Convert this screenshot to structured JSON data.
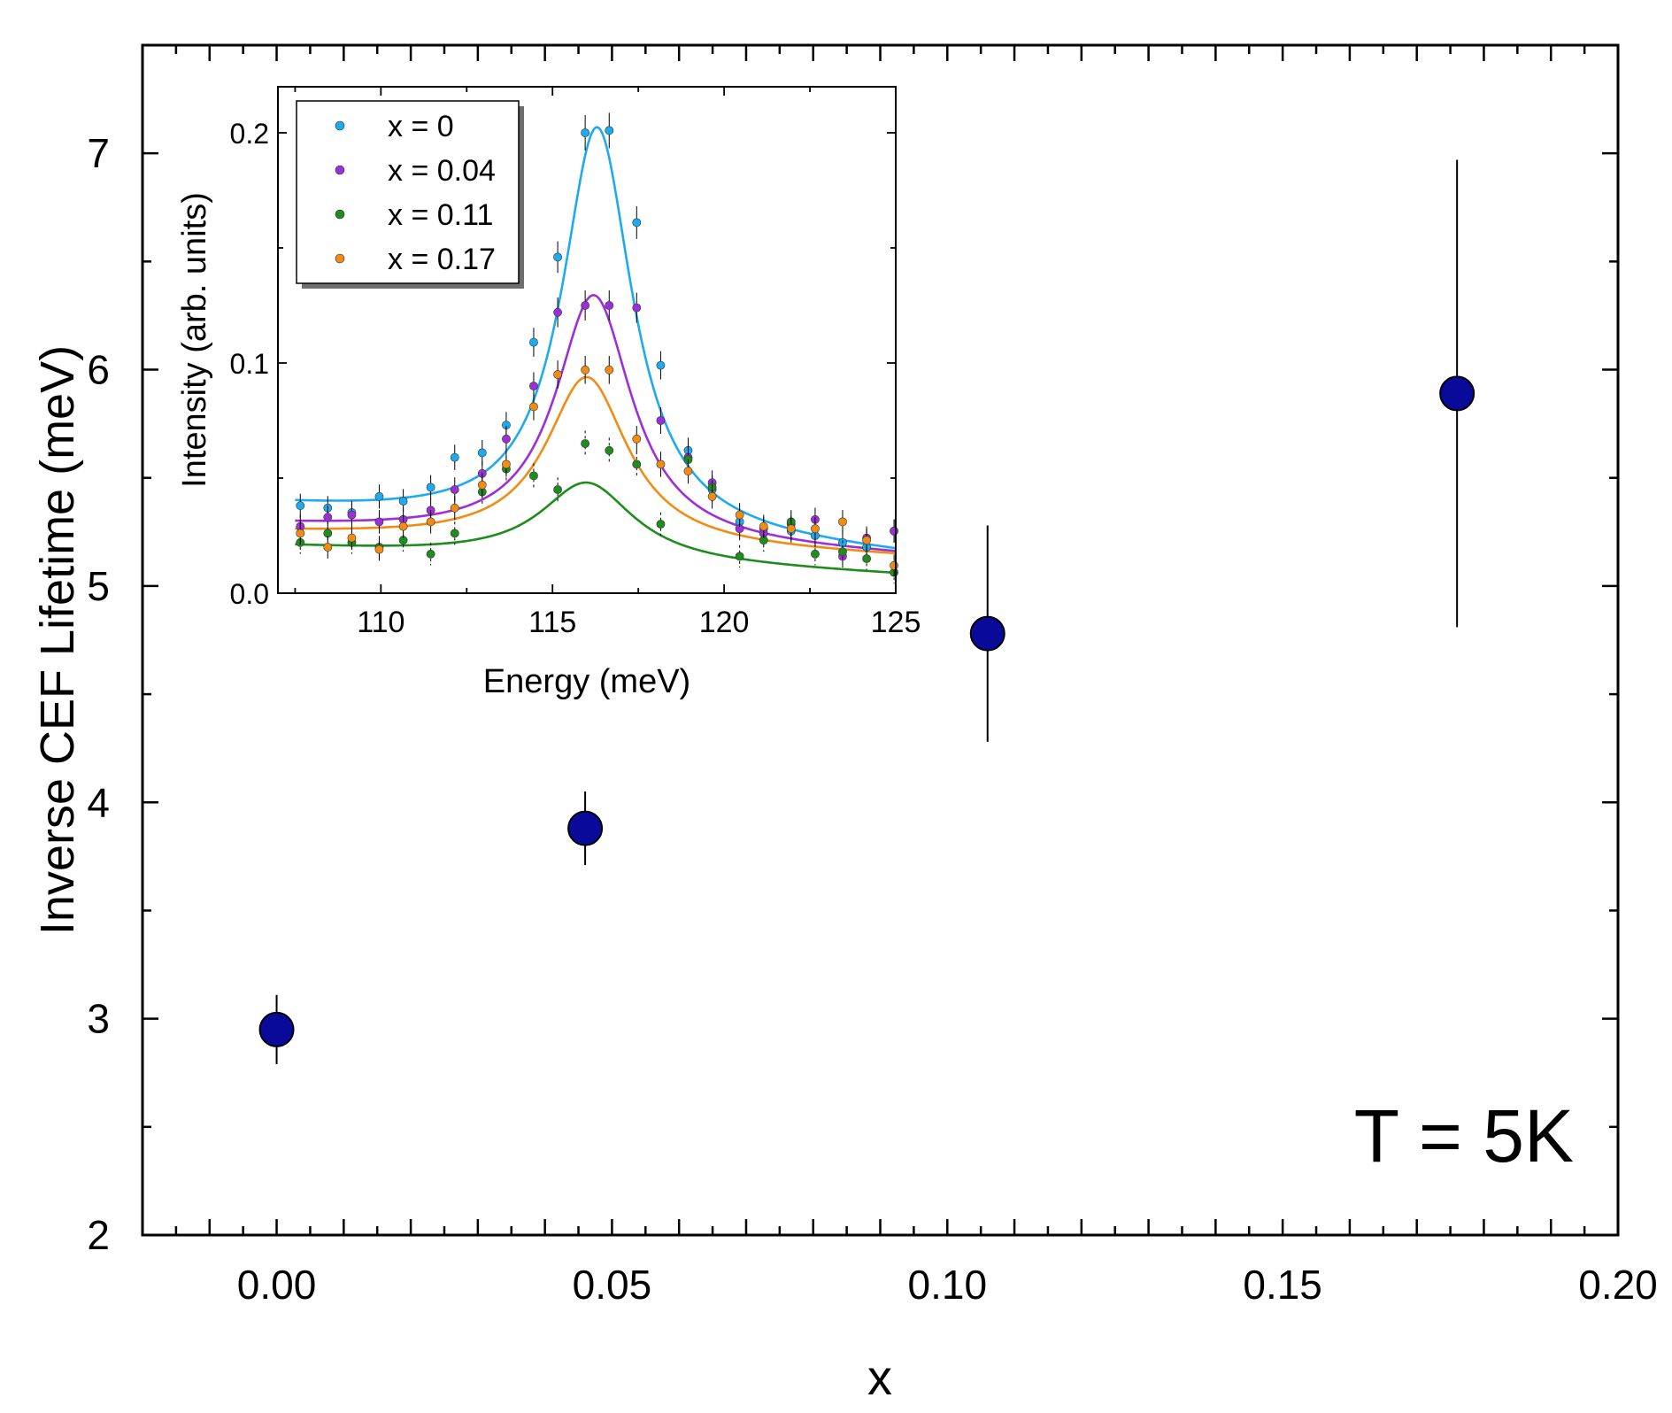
{
  "chart_data": [
    {
      "type": "scatter",
      "role": "main",
      "xlabel": "x",
      "ylabel": "Inverse CEF Lifetime (meV)",
      "xlim": [
        -0.02,
        0.2
      ],
      "ylim": [
        2,
        7.5
      ],
      "xticks": [
        "0.00",
        "0.05",
        "0.10",
        "0.15",
        "0.20"
      ],
      "xtick_values": [
        0.0,
        0.05,
        0.1,
        0.15,
        0.2
      ],
      "yticks": [
        "2",
        "3",
        "4",
        "5",
        "6",
        "7"
      ],
      "ytick_values": [
        2,
        3,
        4,
        5,
        6,
        7
      ],
      "annotation": "T = 5K",
      "marker_color": "#0a0a9a",
      "points": [
        {
          "x": 0.0,
          "y": 2.95,
          "yerr": 0.16
        },
        {
          "x": 0.046,
          "y": 3.88,
          "yerr": 0.17
        },
        {
          "x": 0.106,
          "y": 4.78,
          "yerr": 0.5
        },
        {
          "x": 0.176,
          "y": 5.89,
          "yerr": 1.08
        }
      ],
      "grid": false
    },
    {
      "type": "scatter",
      "role": "inset",
      "xlabel": "Energy (meV)",
      "ylabel": "Intensity (arb. units)",
      "xlim": [
        107,
        125
      ],
      "ylim": [
        0,
        0.22
      ],
      "xticks": [
        "110",
        "115",
        "120",
        "125"
      ],
      "xtick_values": [
        110,
        115,
        120,
        125
      ],
      "yticks": [
        "0.0",
        "0.1",
        "0.2"
      ],
      "ytick_values": [
        0.0,
        0.1,
        0.2
      ],
      "legend_position": "top-left",
      "grid": false,
      "x": [
        107.6,
        108.4,
        109.1,
        109.9,
        110.6,
        111.4,
        112.1,
        112.9,
        113.6,
        114.4,
        115.1,
        115.9,
        116.6,
        117.4,
        118.1,
        118.9,
        119.6,
        120.4,
        121.1,
        121.9,
        122.6,
        123.4,
        124.1,
        124.9
      ],
      "series": [
        {
          "name": "x = 0",
          "color": "#1eaaf0",
          "values": [
            0.038,
            0.037,
            0.035,
            0.042,
            0.04,
            0.046,
            0.059,
            0.061,
            0.073,
            0.109,
            0.146,
            0.2,
            0.201,
            0.161,
            0.099,
            0.062,
            0.045,
            0.031,
            0.028,
            0.027,
            0.025,
            0.022,
            0.02,
            0.027
          ],
          "fit": {
            "baseline": 0.037,
            "slope": -0.0012,
            "amp": 0.176,
            "center": 116.3,
            "hwhm": 1.25
          }
        },
        {
          "name": "x = 0.04",
          "color": "#9b30d8",
          "values": [
            0.029,
            0.033,
            0.034,
            0.031,
            0.032,
            0.036,
            0.045,
            0.052,
            0.067,
            0.09,
            0.122,
            0.125,
            0.125,
            0.124,
            0.075,
            0.059,
            0.048,
            0.028,
            0.026,
            0.03,
            0.032,
            0.016,
            0.024,
            0.027
          ],
          "fit": {
            "baseline": 0.029,
            "slope": -0.00075,
            "amp": 0.107,
            "center": 116.2,
            "hwhm": 1.35
          }
        },
        {
          "name": "x = 0.11",
          "color": "#1e8c1e",
          "values": [
            0.022,
            0.026,
            0.022,
            0.02,
            0.023,
            0.017,
            0.026,
            0.044,
            0.054,
            0.051,
            0.045,
            0.065,
            0.062,
            0.056,
            0.03,
            0.058,
            0.046,
            0.016,
            0.023,
            0.031,
            0.017,
            0.018,
            0.015,
            0.009
          ],
          "fit": {
            "baseline": 0.02,
            "slope": -0.0007,
            "amp": 0.034,
            "center": 116.0,
            "hwhm": 1.65
          }
        },
        {
          "name": "x = 0.17",
          "color": "#f08c14",
          "values": [
            0.026,
            0.02,
            0.024,
            0.019,
            0.029,
            0.031,
            0.037,
            0.047,
            0.056,
            0.081,
            0.095,
            0.097,
            0.097,
            0.067,
            0.056,
            0.053,
            0.042,
            0.034,
            0.029,
            0.028,
            0.028,
            0.031,
            0.023,
            0.012
          ],
          "fit": {
            "baseline": 0.026,
            "slope": -0.0006,
            "amp": 0.073,
            "center": 116.0,
            "hwhm": 1.45
          }
        }
      ]
    }
  ]
}
